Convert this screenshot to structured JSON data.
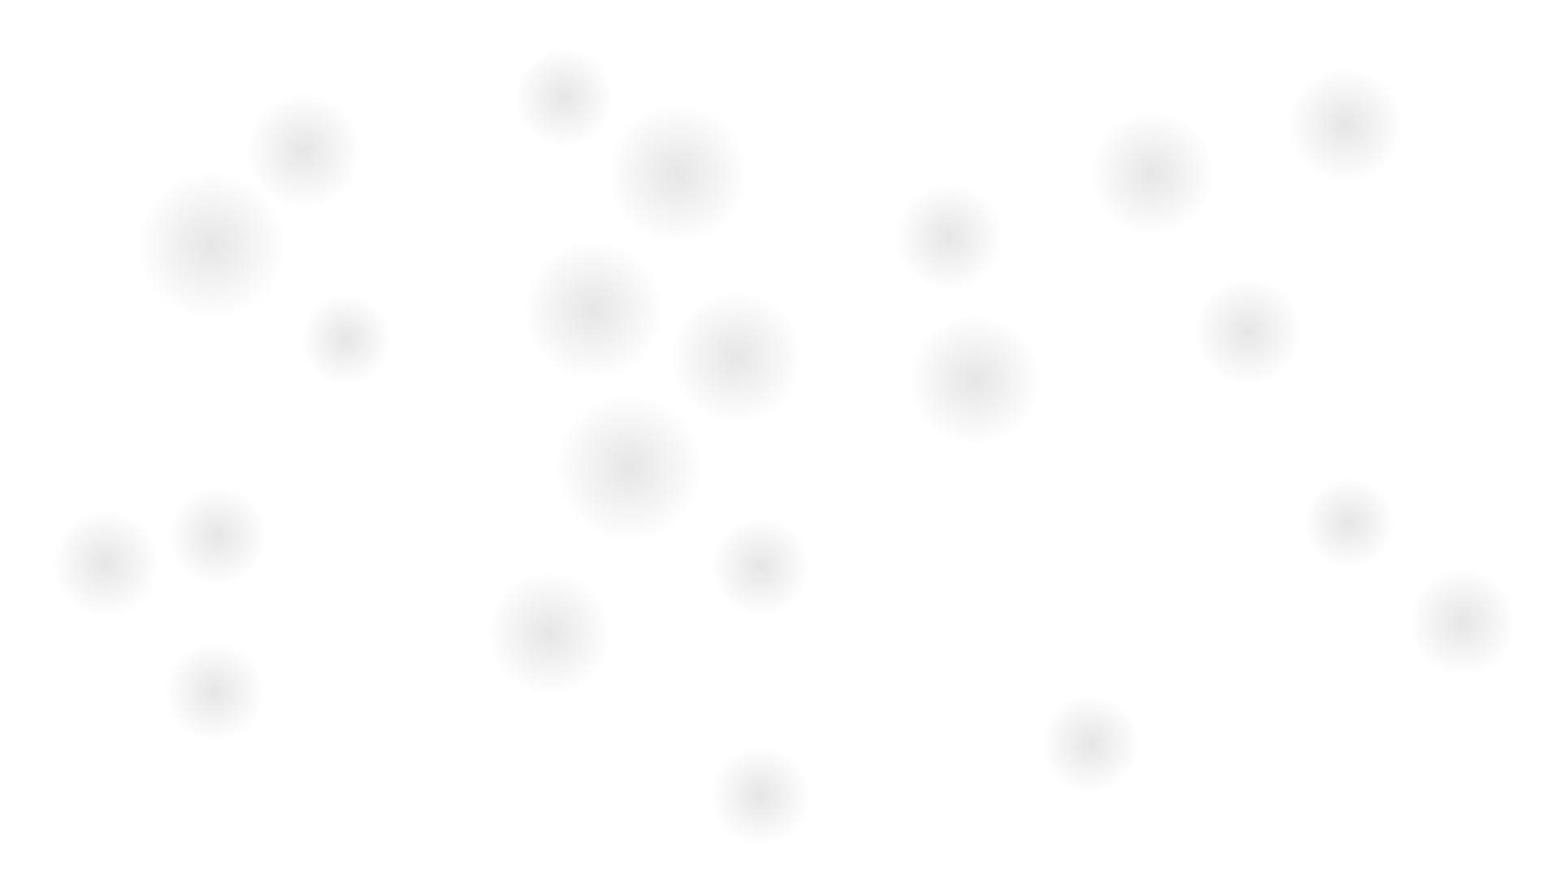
{
  "background_color": "#ffffff",
  "blob_color": "#e6e6e6"
}
